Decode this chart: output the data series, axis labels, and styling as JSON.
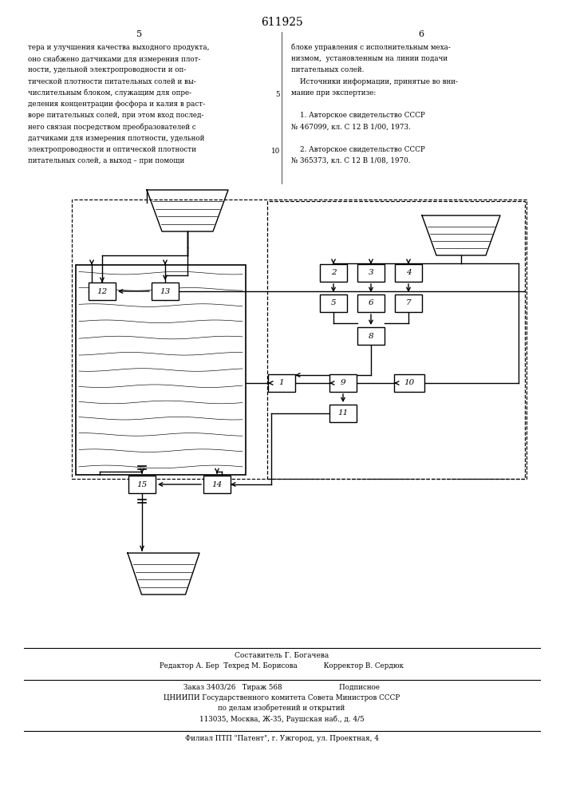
{
  "title": "611925",
  "page_left": "5",
  "page_right": "6",
  "text_left": [
    "тера и улучшения качества выходного продукта,",
    "оно снабжено датчиками для измерения плот-",
    "ности, удельной электропроводности и оп-",
    "тической плотности питательных солей и вы-",
    "числительным блоком, служащим для опре-",
    "деления концентрации фосфора и калия в раст-",
    "воре питательных солей, при этом вход послед-",
    "него связан посредством преобразователей с",
    "датчиками для измерения плотности, удельной",
    "электропроводности и оптической плотности",
    "питательных солей, а выход – при помощи"
  ],
  "line5_row": 4,
  "line10_row": 9,
  "text_right": [
    "блоке управления с исполнительным меха-",
    "низмом,  установленным на линии подачи",
    "питательных солей.",
    "    Источники информации, принятые во вни-",
    "мание при экспертизе:",
    "",
    "    1. Авторское свидетельство СССР",
    "№ 467099, кл. С 12 В 1/00, 1973.",
    "",
    "    2. Авторское свидетельство СССР",
    "№ 365373, кл. С 12 В 1/08, 1970."
  ],
  "footer1": "Составитель Г. Богачева",
  "footer2": "Редактор А. Бер  Техред М. Борисова            Корректор В. Сердюк",
  "footer3": "Заказ 3403/26   Тираж 568                          Подписное",
  "footer4": "ЦНИИПИ Государственного комитета Совета Министров СССР",
  "footer5": "по делам изобретений и открытий",
  "footer6": "113035, Москва, Ж-35, Раушская наб., д. 4/5",
  "footer7": "Филиал ПТП \"Патент\", г. Ужгород, ул. Проектная, 4"
}
